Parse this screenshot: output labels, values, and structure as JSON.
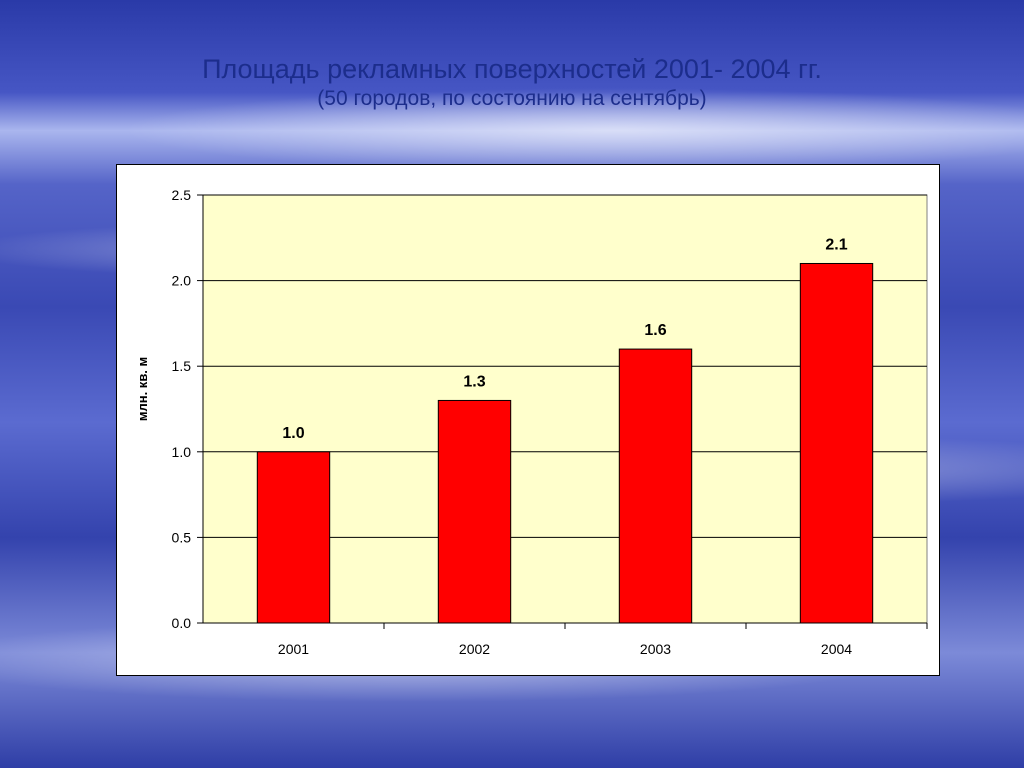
{
  "slide": {
    "title": "Площадь рекламных поверхностей 2001- 2004 гг.",
    "subtitle": "(50 городов, по состоянию на сентябрь)"
  },
  "chart_data": {
    "type": "bar",
    "categories": [
      "2001",
      "2002",
      "2003",
      "2004"
    ],
    "values": [
      1.0,
      1.3,
      1.6,
      2.1
    ],
    "value_labels": [
      "1.0",
      "1.3",
      "1.6",
      "2.1"
    ],
    "ylabel": "млн. кв. м",
    "ylim": [
      0,
      2.5
    ],
    "yticks": [
      0,
      0.5,
      1,
      1.5,
      2,
      2.5
    ],
    "ytick_labels": [
      "0.0",
      "0.5",
      "1.0",
      "1.5",
      "2.0",
      "2.5"
    ],
    "grid": true,
    "colors": {
      "bar": "#ff0000",
      "plot_bg": "#ffffcc",
      "grid": "#000000"
    }
  }
}
